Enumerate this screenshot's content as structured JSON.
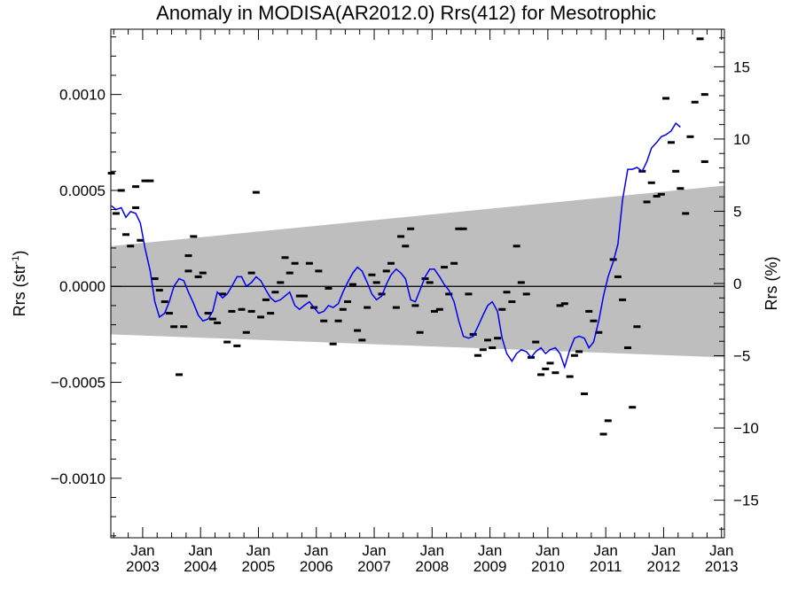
{
  "chart_data": {
    "type": "scatter",
    "title": "Anomaly in MODISA(AR2012.0) Rrs(412) for Mesotrophic",
    "ylabel_left": "Rrs (str",
    "ylabel_left_sup": "-1",
    "ylabel_left_close": ")",
    "ylabel_right": "Rrs (%)",
    "xlim": [
      2002.45,
      2013.05
    ],
    "ylim_left": [
      -0.00131,
      0.00134
    ],
    "ylim_right": [
      -17.6,
      17.6
    ],
    "left_ticks": [
      {
        "value": 0.001,
        "label": "0.0010"
      },
      {
        "value": 0.0005,
        "label": "0.0005"
      },
      {
        "value": 0.0,
        "label": "0.0000"
      },
      {
        "value": -0.0005,
        "label": "−0.0005"
      },
      {
        "value": -0.001,
        "label": "−0.0010"
      }
    ],
    "right_ticks": [
      {
        "value": 15,
        "label": "15"
      },
      {
        "value": 10,
        "label": "10"
      },
      {
        "value": 5,
        "label": "5"
      },
      {
        "value": 0,
        "label": "0"
      },
      {
        "value": -5,
        "label": "−5"
      },
      {
        "value": -10,
        "label": "−10"
      },
      {
        "value": -15,
        "label": "−15"
      }
    ],
    "x_ticks": [
      {
        "value": 2003.0,
        "month": "Jan",
        "year": "2003"
      },
      {
        "value": 2004.0,
        "month": "Jan",
        "year": "2004"
      },
      {
        "value": 2005.0,
        "month": "Jan",
        "year": "2005"
      },
      {
        "value": 2006.0,
        "month": "Jan",
        "year": "2006"
      },
      {
        "value": 2007.0,
        "month": "Jan",
        "year": "2007"
      },
      {
        "value": 2008.0,
        "month": "Jan",
        "year": "2008"
      },
      {
        "value": 2009.0,
        "month": "Jan",
        "year": "2009"
      },
      {
        "value": 2010.0,
        "month": "Jan",
        "year": "2010"
      },
      {
        "value": 2011.0,
        "month": "Jan",
        "year": "2011"
      },
      {
        "value": 2012.0,
        "month": "Jan",
        "year": "2012"
      },
      {
        "value": 2013.0,
        "month": "Jan",
        "year": "2013"
      }
    ],
    "band": {
      "color": "#bebebe",
      "upper": [
        [
          2002.45,
          0.00021
        ],
        [
          2013.05,
          0.000525
        ]
      ],
      "lower": [
        [
          2002.45,
          -0.00025
        ],
        [
          2013.05,
          -0.00037
        ]
      ]
    },
    "zero_line": true,
    "scatter_color": "#000000",
    "points": [
      [
        2002.46,
        0.00059
      ],
      [
        2002.54,
        0.00038
      ],
      [
        2002.63,
        0.0005
      ],
      [
        2002.71,
        0.00027
      ],
      [
        2002.79,
        0.00021
      ],
      [
        2002.88,
        0.00052
      ],
      [
        2002.88,
        0.00041
      ],
      [
        2002.96,
        0.00024
      ],
      [
        2003.04,
        0.00055
      ],
      [
        2003.13,
        0.00055
      ],
      [
        2003.21,
        4e-05
      ],
      [
        2003.29,
        -2e-05
      ],
      [
        2003.38,
        -8e-05
      ],
      [
        2003.46,
        -0.00014
      ],
      [
        2003.54,
        -0.00021
      ],
      [
        2003.63,
        -0.00046
      ],
      [
        2003.71,
        -0.00021
      ],
      [
        2003.79,
        8e-05
      ],
      [
        2003.79,
        0.00016
      ],
      [
        2003.88,
        0.00026
      ],
      [
        2003.96,
        5e-05
      ],
      [
        2004.04,
        7e-05
      ],
      [
        2004.13,
        -0.00014
      ],
      [
        2004.21,
        -0.00017
      ],
      [
        2004.29,
        -0.00019
      ],
      [
        2004.38,
        -4e-05
      ],
      [
        2004.46,
        -0.00029
      ],
      [
        2004.54,
        -0.00013
      ],
      [
        2004.63,
        -0.00031
      ],
      [
        2004.71,
        -0.00012
      ],
      [
        2004.79,
        -0.00024
      ],
      [
        2004.88,
        -0.00013
      ],
      [
        2004.88,
        7e-05
      ],
      [
        2004.96,
        0.00049
      ],
      [
        2005.04,
        -0.00016
      ],
      [
        2005.13,
        -7e-05
      ],
      [
        2005.21,
        -0.00014
      ],
      [
        2005.29,
        -3e-05
      ],
      [
        2005.38,
        2e-05
      ],
      [
        2005.46,
        0.00015
      ],
      [
        2005.54,
        7e-05
      ],
      [
        2005.63,
        0.00012
      ],
      [
        2005.71,
        -5e-05
      ],
      [
        2005.79,
        -5e-05
      ],
      [
        2005.88,
        0.00012
      ],
      [
        2005.96,
        -0.00011
      ],
      [
        2006.04,
        8e-05
      ],
      [
        2006.13,
        -0.00018
      ],
      [
        2006.21,
        -1e-05
      ],
      [
        2006.29,
        -0.0003
      ],
      [
        2006.38,
        -0.00018
      ],
      [
        2006.46,
        -0.00012
      ],
      [
        2006.54,
        -8e-05
      ],
      [
        2006.63,
        1e-05
      ],
      [
        2006.71,
        -0.00023
      ],
      [
        2006.79,
        -0.00028
      ],
      [
        2006.88,
        -0.00011
      ],
      [
        2006.96,
        6e-05
      ],
      [
        2007.04,
        2e-05
      ],
      [
        2007.13,
        -4e-05
      ],
      [
        2007.21,
        8e-05
      ],
      [
        2007.29,
        0.00012
      ],
      [
        2007.38,
        -0.00011
      ],
      [
        2007.46,
        0.00026
      ],
      [
        2007.54,
        0.00021
      ],
      [
        2007.63,
        0.0003
      ],
      [
        2007.71,
        -0.0001
      ],
      [
        2007.79,
        -0.00024
      ],
      [
        2007.88,
        4e-05
      ],
      [
        2007.96,
        2e-05
      ],
      [
        2008.04,
        -0.00013
      ],
      [
        2008.13,
        -0.00012
      ],
      [
        2008.21,
        0.0001
      ],
      [
        2008.29,
        -4e-05
      ],
      [
        2008.38,
        0.00012
      ],
      [
        2008.46,
        0.0003
      ],
      [
        2008.54,
        0.0003
      ],
      [
        2008.63,
        -4e-05
      ],
      [
        2008.71,
        -0.00025
      ],
      [
        2008.79,
        -0.00036
      ],
      [
        2008.88,
        -0.00033
      ],
      [
        2008.96,
        -0.00028
      ],
      [
        2009.04,
        -0.00032
      ],
      [
        2009.13,
        -0.00027
      ],
      [
        2009.21,
        -0.00012
      ],
      [
        2009.29,
        -3e-05
      ],
      [
        2009.38,
        -8e-05
      ],
      [
        2009.46,
        0.00021
      ],
      [
        2009.54,
        2e-05
      ],
      [
        2009.63,
        -4e-05
      ],
      [
        2009.71,
        -0.00037
      ],
      [
        2009.79,
        -0.00029
      ],
      [
        2009.88,
        -0.00046
      ],
      [
        2009.96,
        -0.00043
      ],
      [
        2010.04,
        -0.0004
      ],
      [
        2010.13,
        -0.00045
      ],
      [
        2010.21,
        -0.0001
      ],
      [
        2010.29,
        -9e-05
      ],
      [
        2010.38,
        -0.00047
      ],
      [
        2010.46,
        -0.00036
      ],
      [
        2010.54,
        -0.00034
      ],
      [
        2010.63,
        -0.00056
      ],
      [
        2010.71,
        -0.00013
      ],
      [
        2010.79,
        -0.00018
      ],
      [
        2010.88,
        -0.00024
      ],
      [
        2010.96,
        -0.00077
      ],
      [
        2011.04,
        -0.0007
      ],
      [
        2011.13,
        0.00014
      ],
      [
        2011.21,
        5e-05
      ],
      [
        2011.29,
        -7e-05
      ],
      [
        2011.38,
        -0.00032
      ],
      [
        2011.46,
        -0.00063
      ],
      [
        2011.54,
        -0.00021
      ],
      [
        2011.63,
        0.0006
      ],
      [
        2011.71,
        0.00044
      ],
      [
        2011.79,
        0.00054
      ],
      [
        2011.88,
        0.00047
      ],
      [
        2011.96,
        0.00048
      ],
      [
        2012.04,
        0.00098
      ],
      [
        2012.13,
        0.00075
      ],
      [
        2012.21,
        0.0006
      ],
      [
        2012.29,
        0.00051
      ],
      [
        2012.38,
        0.00038
      ],
      [
        2012.46,
        0.00078
      ],
      [
        2012.54,
        0.00096
      ],
      [
        2012.63,
        0.00129
      ],
      [
        2012.71,
        0.001
      ],
      [
        2012.71,
        0.00065
      ]
    ],
    "line_color": "#0000ee",
    "running_mean": [
      [
        2002.46,
        0.00042
      ],
      [
        2002.54,
        0.0004
      ],
      [
        2002.63,
        0.00041
      ],
      [
        2002.71,
        0.00036
      ],
      [
        2002.79,
        0.00039
      ],
      [
        2002.88,
        0.00038
      ],
      [
        2002.96,
        0.00033
      ],
      [
        2003.04,
        0.0002
      ],
      [
        2003.13,
        8e-05
      ],
      [
        2003.21,
        -8e-05
      ],
      [
        2003.29,
        -0.00016
      ],
      [
        2003.38,
        -0.00014
      ],
      [
        2003.46,
        -8e-05
      ],
      [
        2003.54,
        0.0
      ],
      [
        2003.63,
        4e-05
      ],
      [
        2003.71,
        3e-05
      ],
      [
        2003.79,
        -3e-05
      ],
      [
        2003.88,
        -9e-05
      ],
      [
        2003.96,
        -0.00015
      ],
      [
        2004.04,
        -0.00018
      ],
      [
        2004.13,
        -0.00017
      ],
      [
        2004.21,
        -0.00013
      ],
      [
        2004.29,
        -3e-05
      ],
      [
        2004.38,
        -6e-05
      ],
      [
        2004.46,
        -4e-05
      ],
      [
        2004.54,
        0.0
      ],
      [
        2004.63,
        5e-05
      ],
      [
        2004.71,
        5e-05
      ],
      [
        2004.79,
        0.0
      ],
      [
        2004.88,
        2e-05
      ],
      [
        2004.96,
        5e-05
      ],
      [
        2005.04,
        3e-05
      ],
      [
        2005.13,
        -2e-05
      ],
      [
        2005.21,
        -6e-05
      ],
      [
        2005.29,
        -8e-05
      ],
      [
        2005.38,
        -7e-05
      ],
      [
        2005.46,
        -5e-05
      ],
      [
        2005.54,
        -3e-05
      ],
      [
        2005.63,
        -0.0001
      ],
      [
        2005.71,
        -0.00012
      ],
      [
        2005.79,
        -0.0001
      ],
      [
        2005.88,
        -8e-05
      ],
      [
        2005.96,
        -0.00011
      ],
      [
        2006.04,
        -0.00014
      ],
      [
        2006.13,
        -0.00013
      ],
      [
        2006.21,
        -0.0001
      ],
      [
        2006.29,
        -0.00011
      ],
      [
        2006.38,
        -9e-05
      ],
      [
        2006.46,
        -3e-05
      ],
      [
        2006.54,
        2e-05
      ],
      [
        2006.63,
        7e-05
      ],
      [
        2006.71,
        0.0001
      ],
      [
        2006.79,
        8e-05
      ],
      [
        2006.88,
        2e-05
      ],
      [
        2006.96,
        -4e-05
      ],
      [
        2007.04,
        -7e-05
      ],
      [
        2007.13,
        -5e-05
      ],
      [
        2007.21,
        1e-05
      ],
      [
        2007.29,
        6e-05
      ],
      [
        2007.38,
        9e-05
      ],
      [
        2007.46,
        7e-05
      ],
      [
        2007.54,
        4e-05
      ],
      [
        2007.63,
        -7e-05
      ],
      [
        2007.71,
        -8e-05
      ],
      [
        2007.79,
        -2e-05
      ],
      [
        2007.88,
        5e-05
      ],
      [
        2007.96,
        9e-05
      ],
      [
        2008.04,
        9e-05
      ],
      [
        2008.13,
        5e-05
      ],
      [
        2008.21,
        1e-05
      ],
      [
        2008.29,
        -2e-05
      ],
      [
        2008.38,
        -8e-05
      ],
      [
        2008.46,
        -0.00018
      ],
      [
        2008.54,
        -0.00026
      ],
      [
        2008.63,
        -0.00027
      ],
      [
        2008.71,
        -0.00026
      ],
      [
        2008.79,
        -0.00021
      ],
      [
        2008.88,
        -0.00015
      ],
      [
        2008.96,
        -0.0001
      ],
      [
        2009.04,
        -8e-05
      ],
      [
        2009.13,
        -0.00013
      ],
      [
        2009.21,
        -0.00027
      ],
      [
        2009.29,
        -0.00035
      ],
      [
        2009.38,
        -0.00039
      ],
      [
        2009.46,
        -0.00035
      ],
      [
        2009.54,
        -0.00033
      ],
      [
        2009.63,
        -0.00034
      ],
      [
        2009.71,
        -0.00037
      ],
      [
        2009.79,
        -0.00034
      ],
      [
        2009.88,
        -0.00032
      ],
      [
        2009.96,
        -0.00035
      ],
      [
        2010.04,
        -0.00033
      ],
      [
        2010.13,
        -0.00032
      ],
      [
        2010.21,
        -0.00035
      ],
      [
        2010.29,
        -0.00042
      ],
      [
        2010.38,
        -0.00033
      ],
      [
        2010.46,
        -0.00027
      ],
      [
        2010.54,
        -0.00026
      ],
      [
        2010.63,
        -0.00027
      ],
      [
        2010.71,
        -0.00032
      ],
      [
        2010.79,
        -0.00029
      ],
      [
        2010.88,
        -0.00018
      ],
      [
        2010.96,
        -5e-05
      ],
      [
        2011.04,
        5e-05
      ],
      [
        2011.13,
        0.00013
      ],
      [
        2011.21,
        0.00022
      ],
      [
        2011.29,
        0.00045
      ],
      [
        2011.38,
        0.00061
      ],
      [
        2011.46,
        0.00061
      ],
      [
        2011.54,
        0.00062
      ],
      [
        2011.63,
        0.0006
      ],
      [
        2011.71,
        0.00065
      ],
      [
        2011.79,
        0.00072
      ],
      [
        2011.88,
        0.00075
      ],
      [
        2011.96,
        0.00078
      ],
      [
        2012.04,
        0.00079
      ],
      [
        2012.13,
        0.00081
      ],
      [
        2012.21,
        0.00085
      ],
      [
        2012.29,
        0.00083
      ]
    ]
  }
}
